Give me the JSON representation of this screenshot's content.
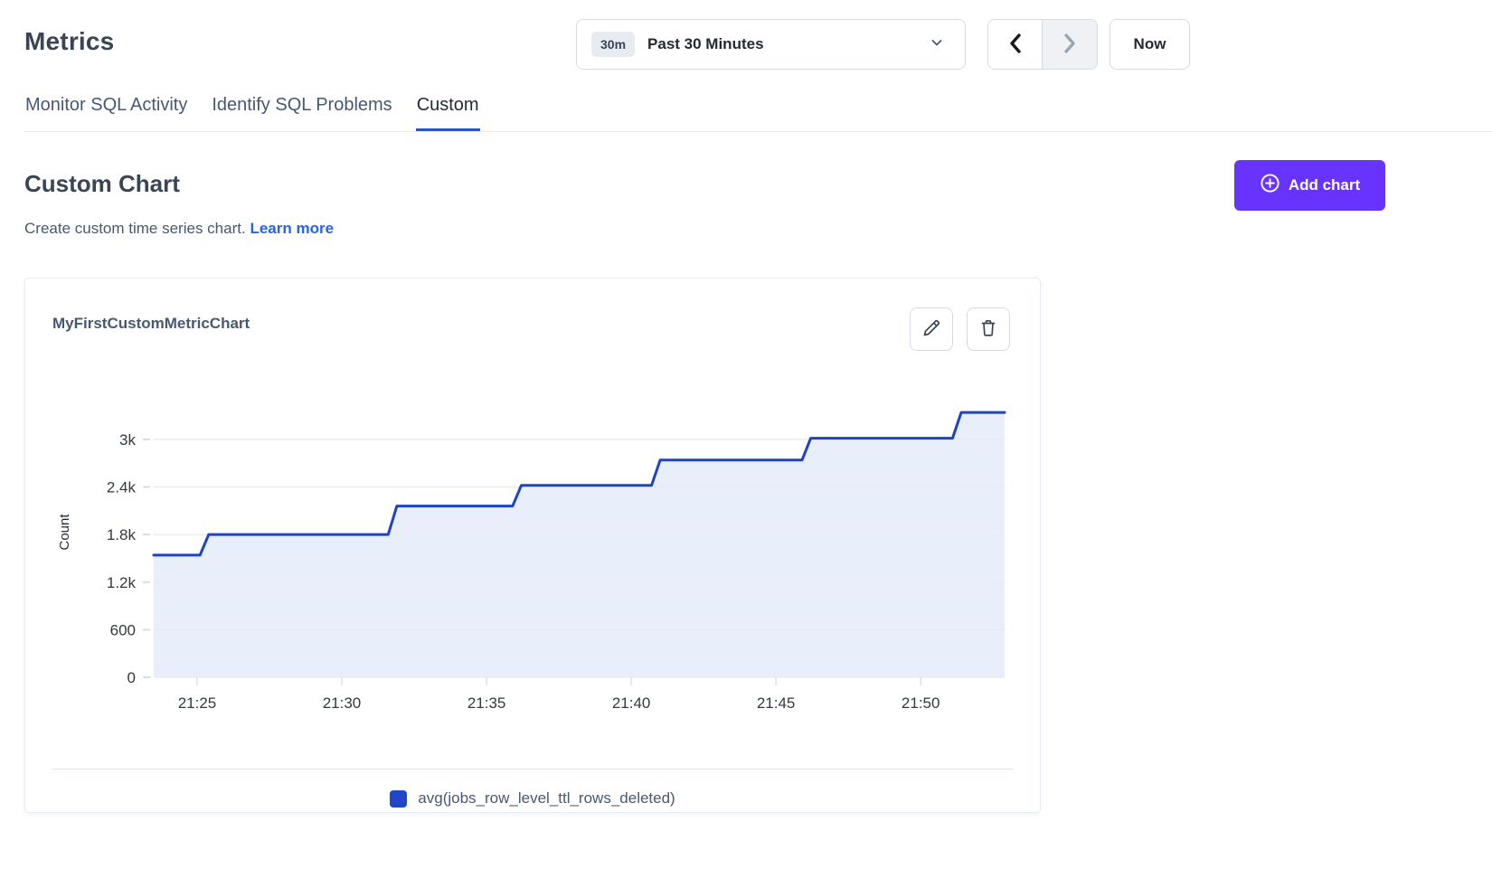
{
  "page": {
    "title": "Metrics"
  },
  "time_controls": {
    "preset_badge": "30m",
    "range_label": "Past 30 Minutes",
    "prev_icon": "chevron-left",
    "next_icon": "chevron-right",
    "next_disabled": true,
    "now_label": "Now"
  },
  "tabs": [
    {
      "label": "Monitor SQL Activity",
      "active": false
    },
    {
      "label": "Identify SQL Problems",
      "active": false
    },
    {
      "label": "Custom",
      "active": true
    }
  ],
  "section": {
    "heading": "Custom Chart",
    "description": "Create custom time series chart.",
    "learn_more_label": "Learn more",
    "add_chart_label": "Add chart"
  },
  "card": {
    "title": "MyFirstCustomMetricChart"
  },
  "chart_data": {
    "type": "area",
    "step": true,
    "title": "MyFirstCustomMetricChart",
    "xlabel": "",
    "ylabel": "Count",
    "x_unit": "minutes after 21:00",
    "xlim_minutes": [
      23.5,
      52.9
    ],
    "ylim": [
      0,
      3660
    ],
    "grid": "horizontal",
    "legend_position": "bottom-center",
    "x_ticks": {
      "minutes": [
        25,
        30,
        35,
        40,
        45,
        50
      ],
      "labels": [
        "21:25",
        "21:30",
        "21:35",
        "21:40",
        "21:45",
        "21:50"
      ]
    },
    "y_ticks": {
      "values": [
        0,
        600,
        1200,
        1800,
        2400,
        3000
      ],
      "labels": [
        "0",
        "600",
        "1.2k",
        "1.8k",
        "2.4k",
        "3k"
      ]
    },
    "series": [
      {
        "name": "avg(jobs_row_level_ttl_rows_deleted)",
        "color": "#1d44c2",
        "fill": "#e9eefb",
        "points": [
          [
            23.5,
            1540
          ],
          [
            25.1,
            1540
          ],
          [
            25.4,
            1800
          ],
          [
            31.6,
            1800
          ],
          [
            31.9,
            2160
          ],
          [
            35.9,
            2160
          ],
          [
            36.2,
            2420
          ],
          [
            40.7,
            2420
          ],
          [
            41.0,
            2740
          ],
          [
            45.9,
            2740
          ],
          [
            46.2,
            3015
          ],
          [
            51.1,
            3015
          ],
          [
            51.4,
            3340
          ],
          [
            52.9,
            3340
          ]
        ]
      }
    ]
  },
  "colors": {
    "heading": "#394455",
    "tab_inactive": "#475872",
    "tab_active": "#242a35",
    "tab_underline": "#2a55cf",
    "link_blue": "#2563eb",
    "button_purple": "#6933ff",
    "line_blue": "#1d44c2",
    "area_fill": "#e9eefb",
    "grid_line": "#e7eaf0",
    "border": "#d6dbe3"
  }
}
